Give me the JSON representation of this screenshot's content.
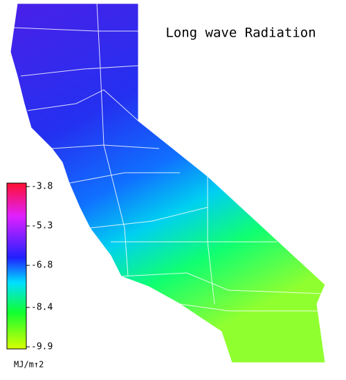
{
  "title": "Long wave Radiation",
  "colorbar": {
    "ticks": [
      -3.8,
      -5.3,
      -6.8,
      -8.4,
      -9.9
    ],
    "unit": "MJ/m↑2"
  }
}
